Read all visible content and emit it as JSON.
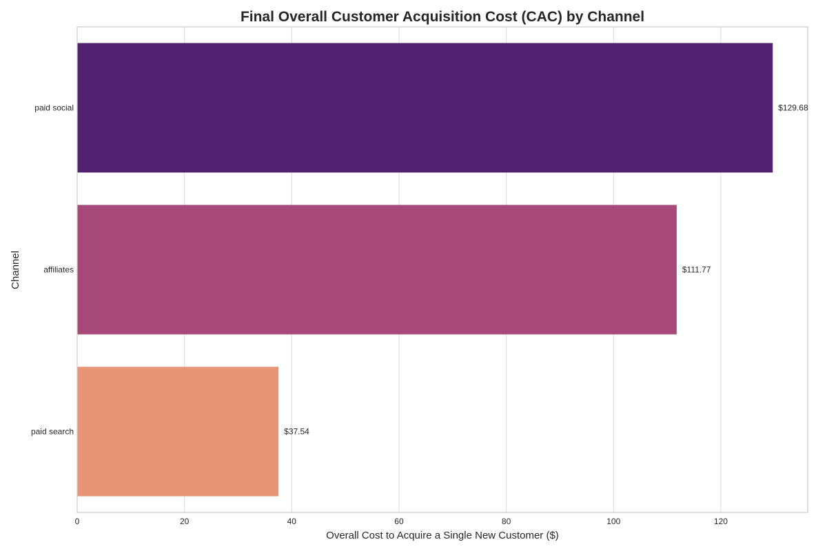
{
  "chart_data": {
    "type": "bar",
    "orientation": "horizontal",
    "title": "Final Overall Customer Acquisition Cost (CAC) by Channel",
    "xlabel": "Overall Cost to Acquire a Single New Customer ($)",
    "ylabel": "Channel",
    "categories": [
      "paid social",
      "affiliates",
      "paid search"
    ],
    "values": [
      129.68,
      111.77,
      37.54
    ],
    "data_labels": [
      "$129.68",
      "$111.77",
      "$37.54"
    ],
    "colors": [
      "#51206e",
      "#a74979",
      "#e89476"
    ],
    "xlim": [
      0,
      136.2
    ],
    "xticks": [
      0,
      20,
      40,
      60,
      80,
      100,
      120
    ],
    "xtick_labels": [
      "0",
      "20",
      "40",
      "60",
      "80",
      "100",
      "120"
    ],
    "grid": "vertical"
  }
}
